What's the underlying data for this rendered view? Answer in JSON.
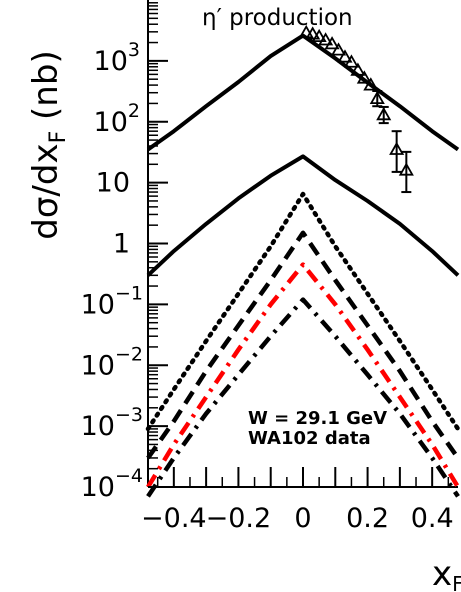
{
  "chart_data": {
    "type": "line",
    "title": "η′ production",
    "xlabel": "x",
    "xlabel_sub": "F",
    "ylabel": "dσ/dx",
    "ylabel_sub": "F",
    "ylabel_unit": "(nb)",
    "xlim": [
      -0.48,
      0.48
    ],
    "ylog": true,
    "ylim_log10": [
      -4,
      4
    ],
    "x_ticks": [
      -0.4,
      -0.2,
      0,
      0.2,
      0.4
    ],
    "x_tick_labels": [
      "−0.4",
      "−0.2",
      "0",
      "0.2",
      "0.4"
    ],
    "y_ticks_log10": [
      -4,
      -3,
      -2,
      -1,
      0,
      1,
      2,
      3
    ],
    "y_tick_labels": [
      {
        "base": "10",
        "exp": "−4"
      },
      {
        "base": "10",
        "exp": "−3"
      },
      {
        "base": "10",
        "exp": "−2"
      },
      {
        "base": "10",
        "exp": "−1"
      },
      {
        "base": "1",
        "exp": ""
      },
      {
        "base": "10",
        "exp": ""
      },
      {
        "base": "10",
        "exp": "2"
      },
      {
        "base": "10",
        "exp": "3"
      }
    ],
    "annotations": [
      "W = 29.1 GeV",
      "WA102 data"
    ],
    "series": [
      {
        "style": "solid",
        "color": "#000000",
        "points": [
          [
            -0.48,
            35
          ],
          [
            -0.4,
            70
          ],
          [
            -0.3,
            180
          ],
          [
            -0.2,
            450
          ],
          [
            -0.1,
            1200
          ],
          [
            0,
            2600
          ],
          [
            0.1,
            1100
          ],
          [
            0.2,
            440
          ],
          [
            0.3,
            180
          ],
          [
            0.4,
            70
          ],
          [
            0.48,
            35
          ]
        ]
      },
      {
        "style": "solid",
        "color": "#000000",
        "points": [
          [
            -0.48,
            0.3
          ],
          [
            -0.4,
            0.75
          ],
          [
            -0.3,
            2.1
          ],
          [
            -0.2,
            5.5
          ],
          [
            -0.1,
            13
          ],
          [
            0,
            27
          ],
          [
            0.1,
            11
          ],
          [
            0.2,
            5
          ],
          [
            0.3,
            2.1
          ],
          [
            0.4,
            0.75
          ],
          [
            0.48,
            0.3
          ]
        ]
      },
      {
        "style": "dotted",
        "color": "#000000",
        "points": [
          [
            -0.48,
            0.0009
          ],
          [
            -0.4,
            0.004
          ],
          [
            -0.3,
            0.025
          ],
          [
            -0.2,
            0.15
          ],
          [
            -0.1,
            0.9
          ],
          [
            0,
            6.5
          ],
          [
            0.1,
            0.9
          ],
          [
            0.2,
            0.15
          ],
          [
            0.3,
            0.025
          ],
          [
            0.4,
            0.004
          ],
          [
            0.48,
            0.0009
          ]
        ]
      },
      {
        "style": "dashed",
        "color": "#000000",
        "points": [
          [
            -0.48,
            0.0003
          ],
          [
            -0.4,
            0.0012
          ],
          [
            -0.3,
            0.008
          ],
          [
            -0.2,
            0.045
          ],
          [
            -0.1,
            0.25
          ],
          [
            0,
            1.5
          ],
          [
            0.1,
            0.25
          ],
          [
            0.2,
            0.045
          ],
          [
            0.3,
            0.008
          ],
          [
            0.4,
            0.0012
          ],
          [
            0.48,
            0.0003
          ]
        ]
      },
      {
        "style": "dashdot",
        "color": "#ff0000",
        "points": [
          [
            -0.48,
            0.0001
          ],
          [
            -0.4,
            0.0005
          ],
          [
            -0.3,
            0.003
          ],
          [
            -0.2,
            0.018
          ],
          [
            -0.1,
            0.1
          ],
          [
            0,
            0.45
          ],
          [
            0.1,
            0.1
          ],
          [
            0.2,
            0.018
          ],
          [
            0.3,
            0.003
          ],
          [
            0.4,
            0.0005
          ],
          [
            0.48,
            0.0001
          ]
        ]
      },
      {
        "style": "dashdot",
        "color": "#000000",
        "points": [
          [
            -0.48,
            7e-05
          ],
          [
            -0.4,
            0.0003
          ],
          [
            -0.3,
            0.0016
          ],
          [
            -0.2,
            0.007
          ],
          [
            -0.1,
            0.03
          ],
          [
            0,
            0.12
          ],
          [
            0.1,
            0.03
          ],
          [
            0.2,
            0.007
          ],
          [
            0.3,
            0.0016
          ],
          [
            0.4,
            0.0003
          ],
          [
            0.48,
            7e-05
          ]
        ]
      }
    ],
    "data_points": {
      "marker": "open-triangle",
      "color": "#000000",
      "points": [
        {
          "x": 0.01,
          "y": 2900,
          "err": 0
        },
        {
          "x": 0.03,
          "y": 2750,
          "err": 0
        },
        {
          "x": 0.05,
          "y": 2500,
          "err": 0
        },
        {
          "x": 0.07,
          "y": 2200,
          "err": 0
        },
        {
          "x": 0.09,
          "y": 1900,
          "err": 0
        },
        {
          "x": 0.11,
          "y": 1500,
          "err": 0
        },
        {
          "x": 0.13,
          "y": 1150,
          "err": 0
        },
        {
          "x": 0.15,
          "y": 950,
          "err": 0
        },
        {
          "x": 0.17,
          "y": 700,
          "err": 0
        },
        {
          "x": 0.19,
          "y": 520,
          "err": 0
        },
        {
          "x": 0.21,
          "y": 400,
          "err": 0
        },
        {
          "x": 0.23,
          "y": 240,
          "err_lo": 180,
          "err_hi": 320
        },
        {
          "x": 0.25,
          "y": 130,
          "err_lo": 95,
          "err_hi": 175
        },
        {
          "x": 0.29,
          "y": 35,
          "err_lo": 15,
          "err_hi": 70
        },
        {
          "x": 0.32,
          "y": 16,
          "err_lo": 7,
          "err_hi": 32
        }
      ]
    }
  }
}
